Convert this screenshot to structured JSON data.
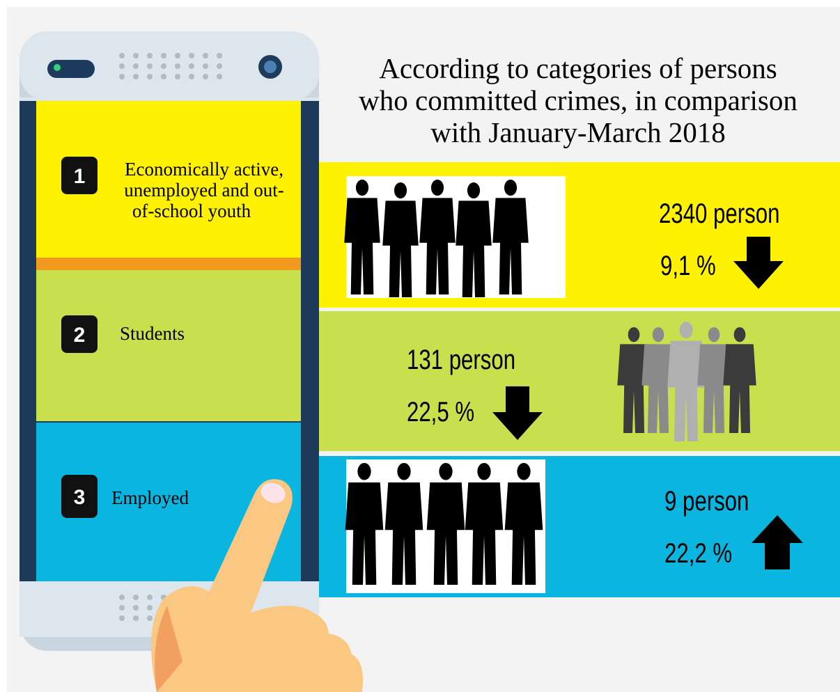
{
  "title_lines": [
    "According to categories of persons",
    "who committed crimes, in comparison",
    "with January-March 2018"
  ],
  "categories": [
    {
      "number": "1",
      "label_lines": [
        "Economically active,",
        "unemployed and out-",
        "of-school youth"
      ],
      "count": "2340 person",
      "change": "9,1 %"
    },
    {
      "number": "2",
      "label_lines": [
        "Students"
      ],
      "count": "131 person",
      "change": "22,5 %"
    },
    {
      "number": "3",
      "label_lines": [
        "Employed"
      ],
      "count": "9 person",
      "change": "22,2 %"
    }
  ]
}
